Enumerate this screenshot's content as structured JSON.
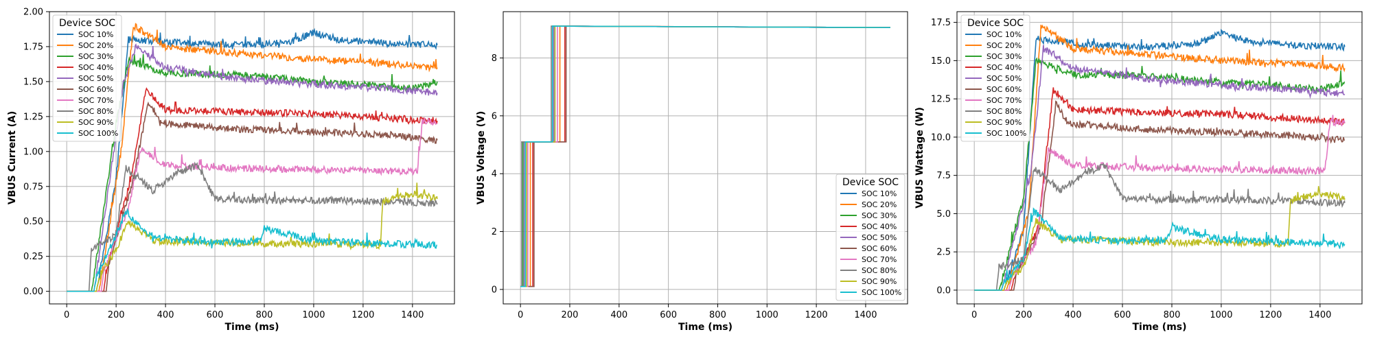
{
  "chart_data": [
    {
      "type": "line",
      "title": "",
      "xlabel": "Time (ms)",
      "ylabel": "VBUS Current (A)",
      "xlim": [
        -70,
        1570
      ],
      "ylim": [
        -0.09,
        2.0
      ],
      "xticks": [
        0,
        200,
        400,
        600,
        800,
        1000,
        1200,
        1400
      ],
      "yticks": [
        0.0,
        0.25,
        0.5,
        0.75,
        1.0,
        1.25,
        1.5,
        1.75,
        2.0
      ],
      "ytick_labels": [
        "0.00",
        "0.25",
        "0.50",
        "0.75",
        "1.00",
        "1.25",
        "1.50",
        "1.75",
        "2.00"
      ],
      "grid": true,
      "legend": {
        "title": "Device SOC",
        "position": "top-left"
      },
      "series": [
        {
          "name": "SOC 10%",
          "color": "#1f77b4",
          "x": [
            0,
            120,
            130,
            200,
            250,
            500,
            700,
            900,
            1000,
            1100,
            1300,
            1500
          ],
          "y": [
            0.0,
            0.0,
            0.1,
            0.8,
            1.8,
            1.77,
            1.76,
            1.78,
            1.85,
            1.8,
            1.77,
            1.76
          ]
        },
        {
          "name": "SOC 20%",
          "color": "#ff7f0e",
          "x": [
            0,
            130,
            140,
            220,
            270,
            400,
            700,
            1000,
            1300,
            1500
          ],
          "y": [
            0.0,
            0.0,
            0.1,
            1.0,
            1.9,
            1.75,
            1.7,
            1.66,
            1.63,
            1.6
          ]
        },
        {
          "name": "SOC 30%",
          "color": "#2ca02c",
          "x": [
            0,
            100,
            110,
            200,
            250,
            400,
            700,
            1000,
            1200,
            1400,
            1500
          ],
          "y": [
            0.0,
            0.0,
            0.1,
            1.2,
            1.65,
            1.56,
            1.55,
            1.5,
            1.48,
            1.45,
            1.5
          ]
        },
        {
          "name": "SOC 40%",
          "color": "#d62728",
          "x": [
            0,
            150,
            160,
            260,
            320,
            400,
            700,
            1000,
            1300,
            1500
          ],
          "y": [
            0.0,
            0.0,
            0.15,
            0.8,
            1.45,
            1.3,
            1.28,
            1.27,
            1.24,
            1.22
          ]
        },
        {
          "name": "SOC 50%",
          "color": "#9467bd",
          "x": [
            0,
            110,
            120,
            230,
            280,
            400,
            700,
            1000,
            1300,
            1500
          ],
          "y": [
            0.0,
            0.0,
            0.12,
            1.5,
            1.75,
            1.6,
            1.52,
            1.48,
            1.45,
            1.42
          ]
        },
        {
          "name": "SOC 60%",
          "color": "#8c564b",
          "x": [
            0,
            160,
            170,
            270,
            330,
            380,
            700,
            1000,
            1300,
            1500
          ],
          "y": [
            0.0,
            0.0,
            0.2,
            0.8,
            1.35,
            1.2,
            1.16,
            1.14,
            1.12,
            1.08
          ]
        },
        {
          "name": "SOC 70%",
          "color": "#e377c2",
          "x": [
            0,
            140,
            150,
            250,
            300,
            400,
            700,
            1000,
            1300,
            1420,
            1440,
            1500
          ],
          "y": [
            0.0,
            0.0,
            0.15,
            0.6,
            1.02,
            0.9,
            0.88,
            0.87,
            0.86,
            0.86,
            1.22,
            1.2
          ]
        },
        {
          "name": "SOC 80%",
          "color": "#7f7f7f",
          "x": [
            0,
            90,
            100,
            200,
            240,
            350,
            450,
            530,
            600,
            800,
            1100,
            1500
          ],
          "y": [
            0.0,
            0.0,
            0.3,
            0.4,
            0.88,
            0.72,
            0.85,
            0.9,
            0.66,
            0.65,
            0.65,
            0.63
          ]
        },
        {
          "name": "SOC 90%",
          "color": "#bcbd22",
          "x": [
            0,
            120,
            130,
            200,
            250,
            350,
            600,
            800,
            1000,
            1270,
            1280,
            1400,
            1500
          ],
          "y": [
            0.0,
            0.0,
            0.1,
            0.3,
            0.5,
            0.36,
            0.35,
            0.34,
            0.34,
            0.33,
            0.65,
            0.7,
            0.66
          ]
        },
        {
          "name": "SOC 100%",
          "color": "#17becf",
          "x": [
            0,
            110,
            120,
            200,
            240,
            350,
            600,
            780,
            800,
            1000,
            1300,
            1500
          ],
          "y": [
            0.0,
            0.0,
            0.1,
            0.4,
            0.57,
            0.38,
            0.35,
            0.36,
            0.45,
            0.36,
            0.34,
            0.33
          ]
        }
      ]
    },
    {
      "type": "line",
      "title": "",
      "xlabel": "Time (ms)",
      "ylabel": "VBUS Voltage (V)",
      "xlim": [
        -70,
        1570
      ],
      "ylim": [
        -0.5,
        9.6
      ],
      "xticks": [
        0,
        200,
        400,
        600,
        800,
        1000,
        1200,
        1400
      ],
      "yticks": [
        0,
        2,
        4,
        6,
        8
      ],
      "ytick_labels": [
        "0",
        "2",
        "4",
        "6",
        "8"
      ],
      "grid": true,
      "legend": {
        "title": "Device SOC",
        "position": "bottom-right"
      },
      "series": [
        {
          "name": "SOC 10%",
          "color": "#1f77b4",
          "x": [
            0,
            20,
            20,
            140,
            140,
            1500
          ],
          "y": [
            0.1,
            0.1,
            5.1,
            5.1,
            9.1,
            9.05
          ]
        },
        {
          "name": "SOC 20%",
          "color": "#ff7f0e",
          "x": [
            0,
            40,
            40,
            160,
            160,
            1500
          ],
          "y": [
            0.1,
            0.1,
            5.1,
            5.1,
            9.1,
            9.05
          ]
        },
        {
          "name": "SOC 30%",
          "color": "#2ca02c",
          "x": [
            0,
            10,
            10,
            130,
            130,
            1500
          ],
          "y": [
            0.1,
            0.1,
            5.1,
            5.1,
            9.1,
            9.05
          ]
        },
        {
          "name": "SOC 40%",
          "color": "#d62728",
          "x": [
            0,
            50,
            50,
            180,
            180,
            1500
          ],
          "y": [
            0.1,
            0.1,
            5.1,
            5.1,
            9.1,
            9.05
          ]
        },
        {
          "name": "SOC 50%",
          "color": "#9467bd",
          "x": [
            0,
            15,
            15,
            135,
            135,
            1500
          ],
          "y": [
            0.1,
            0.1,
            5.1,
            5.1,
            9.1,
            9.05
          ]
        },
        {
          "name": "SOC 60%",
          "color": "#8c564b",
          "x": [
            0,
            55,
            55,
            185,
            185,
            1500
          ],
          "y": [
            0.1,
            0.1,
            5.1,
            5.1,
            9.1,
            9.05
          ]
        },
        {
          "name": "SOC 70%",
          "color": "#e377c2",
          "x": [
            0,
            30,
            30,
            150,
            150,
            1500
          ],
          "y": [
            0.1,
            0.1,
            5.1,
            5.1,
            9.1,
            9.05
          ]
        },
        {
          "name": "SOC 80%",
          "color": "#7f7f7f",
          "x": [
            0,
            5,
            5,
            125,
            125,
            1500
          ],
          "y": [
            0.1,
            0.1,
            5.1,
            5.1,
            9.1,
            9.05
          ]
        },
        {
          "name": "SOC 90%",
          "color": "#bcbd22",
          "x": [
            0,
            25,
            25,
            140,
            140,
            1500
          ],
          "y": [
            0.1,
            0.1,
            5.1,
            5.1,
            9.1,
            9.05
          ]
        },
        {
          "name": "SOC 100%",
          "color": "#17becf",
          "x": [
            0,
            20,
            20,
            130,
            130,
            1500
          ],
          "y": [
            0.1,
            0.1,
            5.1,
            5.1,
            9.1,
            9.05
          ]
        }
      ]
    },
    {
      "type": "line",
      "title": "",
      "xlabel": "Time (ms)",
      "ylabel": "VBUS Wattage (W)",
      "xlim": [
        -70,
        1570
      ],
      "ylim": [
        -0.9,
        18.2
      ],
      "xticks": [
        0,
        200,
        400,
        600,
        800,
        1000,
        1200,
        1400
      ],
      "yticks": [
        0.0,
        2.5,
        5.0,
        7.5,
        10.0,
        12.5,
        15.0,
        17.5
      ],
      "ytick_labels": [
        "0.0",
        "2.5",
        "5.0",
        "7.5",
        "10.0",
        "12.5",
        "15.0",
        "17.5"
      ],
      "grid": true,
      "legend": {
        "title": "Device SOC",
        "position": "top-left"
      },
      "series": [
        {
          "name": "SOC 10%",
          "color": "#1f77b4",
          "x": [
            0,
            120,
            130,
            200,
            250,
            500,
            700,
            900,
            1000,
            1100,
            1300,
            1500
          ],
          "y": [
            0.0,
            0.0,
            0.5,
            4.0,
            16.4,
            16.0,
            15.9,
            16.1,
            16.8,
            16.3,
            16.0,
            15.9
          ]
        },
        {
          "name": "SOC 20%",
          "color": "#ff7f0e",
          "x": [
            0,
            130,
            140,
            220,
            270,
            400,
            700,
            1000,
            1300,
            1500
          ],
          "y": [
            0.0,
            0.0,
            0.5,
            5.1,
            17.3,
            15.8,
            15.4,
            15.0,
            14.8,
            14.5
          ]
        },
        {
          "name": "SOC 30%",
          "color": "#2ca02c",
          "x": [
            0,
            100,
            110,
            200,
            250,
            400,
            700,
            1000,
            1200,
            1400,
            1500
          ],
          "y": [
            0.0,
            0.0,
            0.5,
            6.1,
            15.0,
            14.1,
            14.0,
            13.6,
            13.4,
            13.1,
            13.6
          ]
        },
        {
          "name": "SOC 40%",
          "color": "#d62728",
          "x": [
            0,
            150,
            160,
            260,
            320,
            400,
            700,
            1000,
            1300,
            1500
          ],
          "y": [
            0.0,
            0.0,
            0.8,
            4.1,
            13.1,
            11.8,
            11.6,
            11.5,
            11.2,
            11.0
          ]
        },
        {
          "name": "SOC 50%",
          "color": "#9467bd",
          "x": [
            0,
            110,
            120,
            230,
            280,
            400,
            700,
            1000,
            1300,
            1500
          ],
          "y": [
            0.0,
            0.0,
            0.6,
            7.7,
            15.8,
            14.5,
            13.8,
            13.4,
            13.1,
            12.8
          ]
        },
        {
          "name": "SOC 60%",
          "color": "#8c564b",
          "x": [
            0,
            160,
            170,
            270,
            330,
            380,
            700,
            1000,
            1300,
            1500
          ],
          "y": [
            0.0,
            0.0,
            1.0,
            4.1,
            12.2,
            10.9,
            10.5,
            10.3,
            10.1,
            9.8
          ]
        },
        {
          "name": "SOC 70%",
          "color": "#e377c2",
          "x": [
            0,
            140,
            150,
            250,
            300,
            400,
            700,
            1000,
            1300,
            1420,
            1440,
            1500
          ],
          "y": [
            0.0,
            0.0,
            0.8,
            3.1,
            9.2,
            8.2,
            8.0,
            7.9,
            7.8,
            7.8,
            11.0,
            10.9
          ]
        },
        {
          "name": "SOC 80%",
          "color": "#7f7f7f",
          "x": [
            0,
            90,
            100,
            200,
            240,
            350,
            450,
            530,
            600,
            800,
            1100,
            1500
          ],
          "y": [
            0.0,
            0.0,
            1.5,
            2.0,
            8.0,
            6.5,
            7.7,
            8.1,
            6.0,
            5.9,
            5.9,
            5.7
          ]
        },
        {
          "name": "SOC 90%",
          "color": "#bcbd22",
          "x": [
            0,
            120,
            130,
            200,
            250,
            350,
            600,
            800,
            1000,
            1270,
            1280,
            1400,
            1500
          ],
          "y": [
            0.0,
            0.0,
            0.5,
            1.5,
            4.5,
            3.3,
            3.2,
            3.1,
            3.1,
            3.0,
            5.9,
            6.3,
            6.0
          ]
        },
        {
          "name": "SOC 100%",
          "color": "#17becf",
          "x": [
            0,
            110,
            120,
            200,
            240,
            350,
            600,
            780,
            800,
            1000,
            1300,
            1500
          ],
          "y": [
            0.0,
            0.0,
            0.5,
            2.0,
            5.2,
            3.4,
            3.2,
            3.3,
            4.1,
            3.3,
            3.1,
            3.0
          ]
        }
      ]
    }
  ]
}
